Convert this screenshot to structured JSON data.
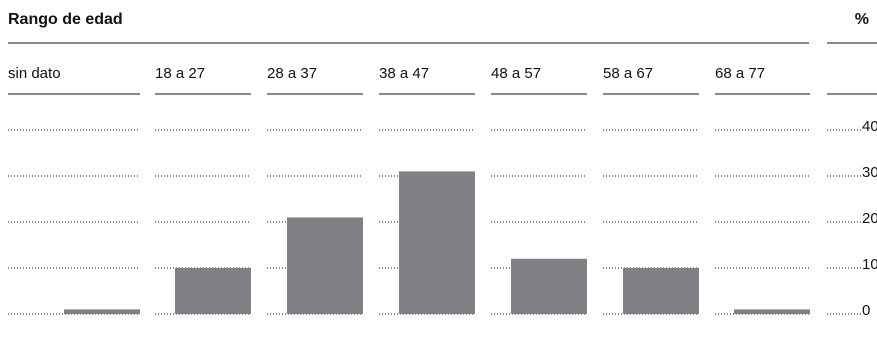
{
  "header": {
    "title": "Rango de edad",
    "unit": "%"
  },
  "colors": {
    "bar": "#808184",
    "text": "#111111"
  },
  "chart_data": {
    "type": "bar",
    "title": "Rango de edad",
    "ylabel": "%",
    "categories": [
      "sin dato",
      "18 a 27",
      "28 a 37",
      "38 a 47",
      "48 a 57",
      "58 a 67",
      "68 a 77"
    ],
    "values": [
      1,
      10,
      21,
      31,
      12,
      10,
      1
    ],
    "ylim": [
      0,
      40
    ],
    "yticks": [
      0,
      10,
      20,
      30,
      40
    ],
    "ytick_labels": [
      "0",
      "10",
      "20",
      "30",
      "40"
    ],
    "grid": true,
    "axis_position": "right"
  }
}
